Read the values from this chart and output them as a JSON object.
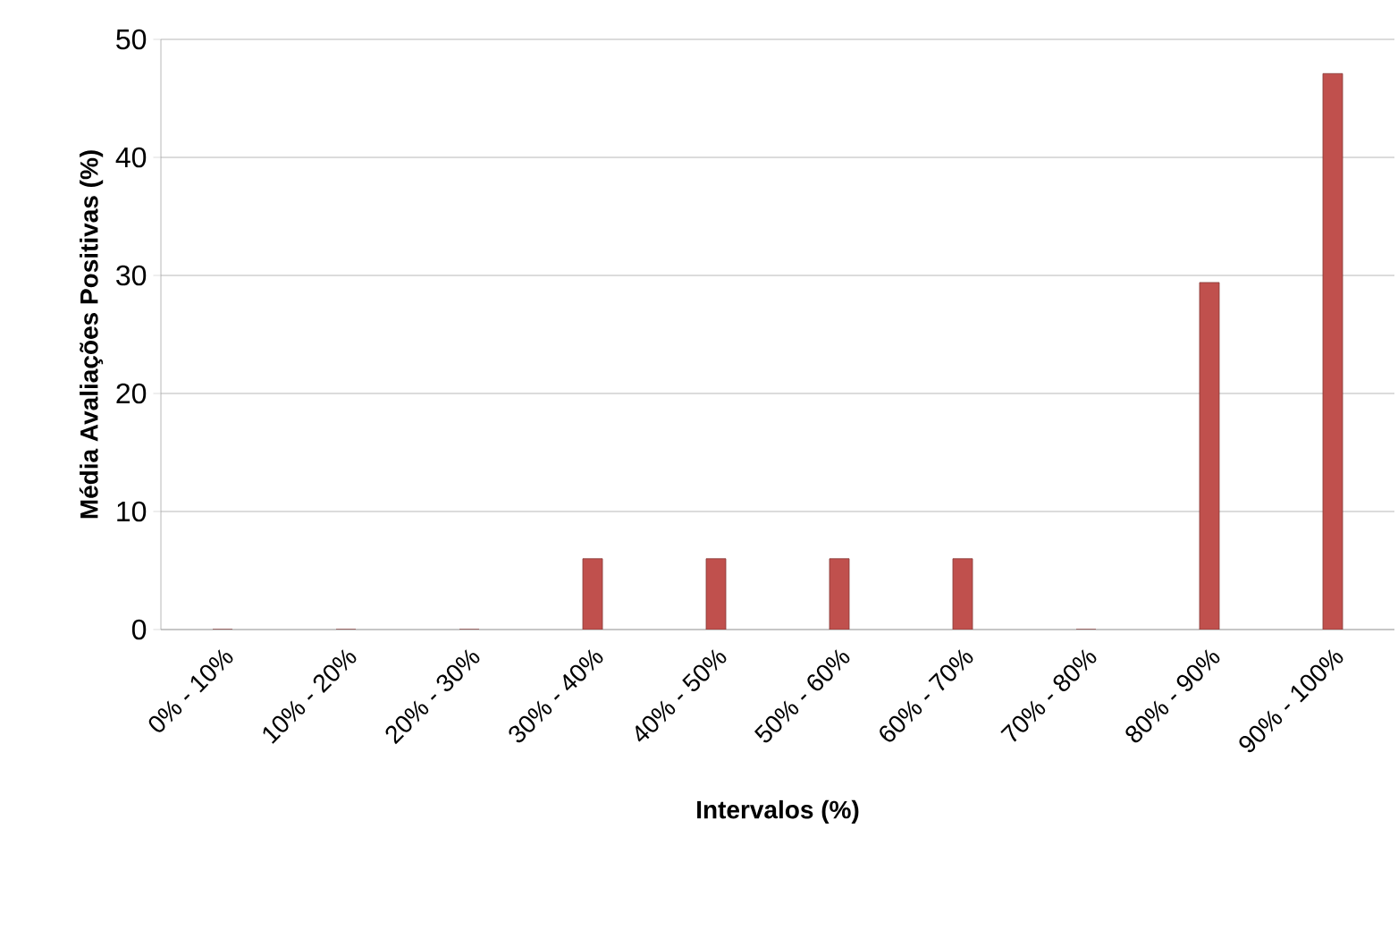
{
  "chart_data": {
    "type": "bar",
    "xlabel": "Intervalos (%)",
    "ylabel": "Média Avaliações Positivas (%)",
    "categories": [
      "0% - 10%",
      "10% - 20%",
      "20% - 30%",
      "30% - 40%",
      "40% - 50%",
      "50% - 60%",
      "60% - 70%",
      "70% - 80%",
      "80% - 90%",
      "90% - 100%"
    ],
    "values": [
      0,
      0,
      0,
      6,
      6,
      6,
      6,
      0,
      29.4,
      47.1
    ],
    "color": "#c0504d",
    "ylim": [
      0,
      50
    ],
    "yticks": [
      0,
      10,
      20,
      30,
      40,
      50
    ],
    "grid": "y"
  }
}
